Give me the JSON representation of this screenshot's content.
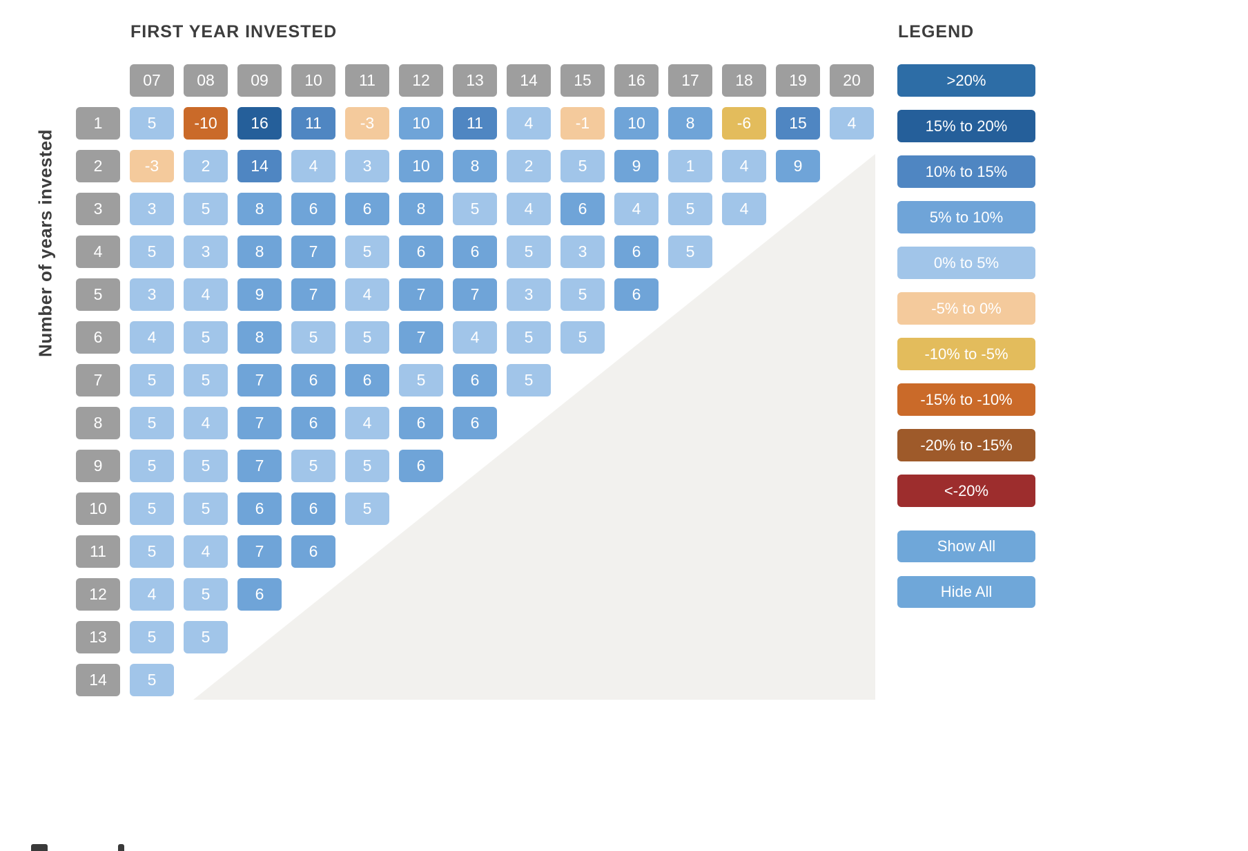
{
  "chart_data": {
    "type": "heatmap",
    "title": "FIRST YEAR INVESTED",
    "ylabel": "Number of years invested",
    "legend_position": "right",
    "header_color": "#9e9e9e",
    "buckets": {
      "gt20": "#2d6da6",
      "p15_20": "#255f9a",
      "p10_15": "#4f86c2",
      "p5_10": "#6fa4d8",
      "p0_5": "#a1c5e9",
      "n5_0": "#f4ca9c",
      "n10_5": "#e3bc5c",
      "n15_10": "#ca6a29",
      "n20_15": "#9e5a2a",
      "ln20": "#9d2d2d"
    },
    "columns": [
      "07",
      "08",
      "09",
      "10",
      "11",
      "12",
      "13",
      "14",
      "15",
      "16",
      "17",
      "18",
      "19",
      "20"
    ],
    "rows": [
      {
        "label": "1",
        "cells": [
          {
            "v": 5,
            "b": "p0_5"
          },
          {
            "v": -10,
            "b": "n15_10"
          },
          {
            "v": 16,
            "b": "p15_20"
          },
          {
            "v": 11,
            "b": "p10_15"
          },
          {
            "v": -3,
            "b": "n5_0"
          },
          {
            "v": 10,
            "b": "p5_10"
          },
          {
            "v": 11,
            "b": "p10_15"
          },
          {
            "v": 4,
            "b": "p0_5"
          },
          {
            "v": -1,
            "b": "n5_0"
          },
          {
            "v": 10,
            "b": "p5_10"
          },
          {
            "v": 8,
            "b": "p5_10"
          },
          {
            "v": -6,
            "b": "n10_5"
          },
          {
            "v": 15,
            "b": "p10_15"
          },
          {
            "v": 4,
            "b": "p0_5"
          }
        ]
      },
      {
        "label": "2",
        "cells": [
          {
            "v": -3,
            "b": "n5_0"
          },
          {
            "v": 2,
            "b": "p0_5"
          },
          {
            "v": 14,
            "b": "p10_15"
          },
          {
            "v": 4,
            "b": "p0_5"
          },
          {
            "v": 3,
            "b": "p0_5"
          },
          {
            "v": 10,
            "b": "p5_10"
          },
          {
            "v": 8,
            "b": "p5_10"
          },
          {
            "v": 2,
            "b": "p0_5"
          },
          {
            "v": 5,
            "b": "p0_5"
          },
          {
            "v": 9,
            "b": "p5_10"
          },
          {
            "v": 1,
            "b": "p0_5"
          },
          {
            "v": 4,
            "b": "p0_5"
          },
          {
            "v": 9,
            "b": "p5_10"
          }
        ]
      },
      {
        "label": "3",
        "cells": [
          {
            "v": 3,
            "b": "p0_5"
          },
          {
            "v": 5,
            "b": "p0_5"
          },
          {
            "v": 8,
            "b": "p5_10"
          },
          {
            "v": 6,
            "b": "p5_10"
          },
          {
            "v": 6,
            "b": "p5_10"
          },
          {
            "v": 8,
            "b": "p5_10"
          },
          {
            "v": 5,
            "b": "p0_5"
          },
          {
            "v": 4,
            "b": "p0_5"
          },
          {
            "v": 6,
            "b": "p5_10"
          },
          {
            "v": 4,
            "b": "p0_5"
          },
          {
            "v": 5,
            "b": "p0_5"
          },
          {
            "v": 4,
            "b": "p0_5"
          }
        ]
      },
      {
        "label": "4",
        "cells": [
          {
            "v": 5,
            "b": "p0_5"
          },
          {
            "v": 3,
            "b": "p0_5"
          },
          {
            "v": 8,
            "b": "p5_10"
          },
          {
            "v": 7,
            "b": "p5_10"
          },
          {
            "v": 5,
            "b": "p0_5"
          },
          {
            "v": 6,
            "b": "p5_10"
          },
          {
            "v": 6,
            "b": "p5_10"
          },
          {
            "v": 5,
            "b": "p0_5"
          },
          {
            "v": 3,
            "b": "p0_5"
          },
          {
            "v": 6,
            "b": "p5_10"
          },
          {
            "v": 5,
            "b": "p0_5"
          }
        ]
      },
      {
        "label": "5",
        "cells": [
          {
            "v": 3,
            "b": "p0_5"
          },
          {
            "v": 4,
            "b": "p0_5"
          },
          {
            "v": 9,
            "b": "p5_10"
          },
          {
            "v": 7,
            "b": "p5_10"
          },
          {
            "v": 4,
            "b": "p0_5"
          },
          {
            "v": 7,
            "b": "p5_10"
          },
          {
            "v": 7,
            "b": "p5_10"
          },
          {
            "v": 3,
            "b": "p0_5"
          },
          {
            "v": 5,
            "b": "p0_5"
          },
          {
            "v": 6,
            "b": "p5_10"
          }
        ]
      },
      {
        "label": "6",
        "cells": [
          {
            "v": 4,
            "b": "p0_5"
          },
          {
            "v": 5,
            "b": "p0_5"
          },
          {
            "v": 8,
            "b": "p5_10"
          },
          {
            "v": 5,
            "b": "p0_5"
          },
          {
            "v": 5,
            "b": "p0_5"
          },
          {
            "v": 7,
            "b": "p5_10"
          },
          {
            "v": 4,
            "b": "p0_5"
          },
          {
            "v": 5,
            "b": "p0_5"
          },
          {
            "v": 5,
            "b": "p0_5"
          }
        ]
      },
      {
        "label": "7",
        "cells": [
          {
            "v": 5,
            "b": "p0_5"
          },
          {
            "v": 5,
            "b": "p0_5"
          },
          {
            "v": 7,
            "b": "p5_10"
          },
          {
            "v": 6,
            "b": "p5_10"
          },
          {
            "v": 6,
            "b": "p5_10"
          },
          {
            "v": 5,
            "b": "p0_5"
          },
          {
            "v": 6,
            "b": "p5_10"
          },
          {
            "v": 5,
            "b": "p0_5"
          }
        ]
      },
      {
        "label": "8",
        "cells": [
          {
            "v": 5,
            "b": "p0_5"
          },
          {
            "v": 4,
            "b": "p0_5"
          },
          {
            "v": 7,
            "b": "p5_10"
          },
          {
            "v": 6,
            "b": "p5_10"
          },
          {
            "v": 4,
            "b": "p0_5"
          },
          {
            "v": 6,
            "b": "p5_10"
          },
          {
            "v": 6,
            "b": "p5_10"
          }
        ]
      },
      {
        "label": "9",
        "cells": [
          {
            "v": 5,
            "b": "p0_5"
          },
          {
            "v": 5,
            "b": "p0_5"
          },
          {
            "v": 7,
            "b": "p5_10"
          },
          {
            "v": 5,
            "b": "p0_5"
          },
          {
            "v": 5,
            "b": "p0_5"
          },
          {
            "v": 6,
            "b": "p5_10"
          }
        ]
      },
      {
        "label": "10",
        "cells": [
          {
            "v": 5,
            "b": "p0_5"
          },
          {
            "v": 5,
            "b": "p0_5"
          },
          {
            "v": 6,
            "b": "p5_10"
          },
          {
            "v": 6,
            "b": "p5_10"
          },
          {
            "v": 5,
            "b": "p0_5"
          }
        ]
      },
      {
        "label": "11",
        "cells": [
          {
            "v": 5,
            "b": "p0_5"
          },
          {
            "v": 4,
            "b": "p0_5"
          },
          {
            "v": 7,
            "b": "p5_10"
          },
          {
            "v": 6,
            "b": "p5_10"
          }
        ]
      },
      {
        "label": "12",
        "cells": [
          {
            "v": 4,
            "b": "p0_5"
          },
          {
            "v": 5,
            "b": "p0_5"
          },
          {
            "v": 6,
            "b": "p5_10"
          }
        ]
      },
      {
        "label": "13",
        "cells": [
          {
            "v": 5,
            "b": "p0_5"
          },
          {
            "v": 5,
            "b": "p0_5"
          }
        ]
      },
      {
        "label": "14",
        "cells": [
          {
            "v": 5,
            "b": "p0_5"
          }
        ]
      }
    ]
  },
  "legend": {
    "title": "LEGEND",
    "items": [
      {
        "label": ">20%",
        "b": "gt20"
      },
      {
        "label": "15% to 20%",
        "b": "p15_20"
      },
      {
        "label": "10% to 15%",
        "b": "p10_15"
      },
      {
        "label": "5% to 10%",
        "b": "p5_10"
      },
      {
        "label": "0% to 5%",
        "b": "p0_5"
      },
      {
        "label": "-5% to 0%",
        "b": "n5_0"
      },
      {
        "label": "-10% to -5%",
        "b": "n10_5"
      },
      {
        "label": "-15% to -10%",
        "b": "n15_10"
      },
      {
        "label": "-20% to -15%",
        "b": "n20_15"
      },
      {
        "label": "<-20%",
        "b": "ln20"
      }
    ],
    "show_all_label": "Show All",
    "hide_all_label": "Hide All",
    "button_color": "#6fa7d9"
  }
}
